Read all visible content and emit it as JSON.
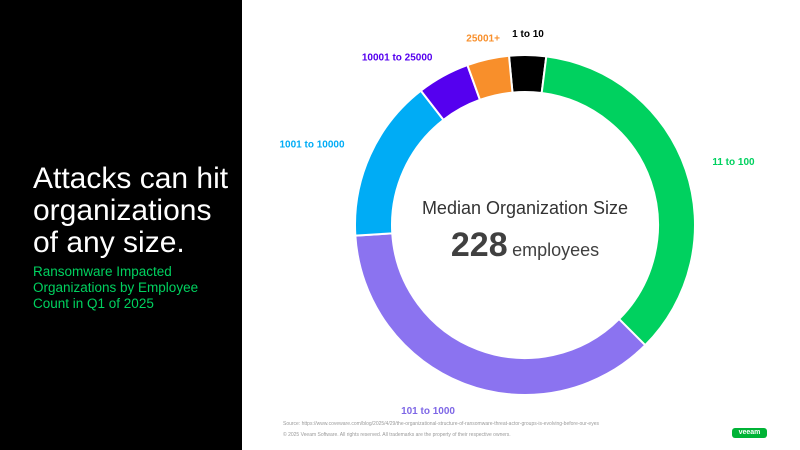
{
  "slide": {
    "headline": "Attacks can hit organizations of any size.",
    "subhead": "Ransomware Impacted Organizations by Employee Count in Q1 of 2025",
    "center_title": "Median Organization Size",
    "center_value": "228",
    "center_unit": "employees",
    "source": "Source: https://www.coveware.com/blog/2025/4/29/the-organizational-structure-of-ransomware-threat-actor-groups-is-evolving-before-our-eyes",
    "copyright": "© 2025 Veeam Software. All rights reserved. All trademarks are the property of their respective owners.",
    "logo_text": "veeam",
    "colors": {
      "left_panel": "#000000",
      "accent": "#00d15f"
    }
  },
  "chart_data": {
    "type": "pie",
    "title": "",
    "categories": [
      "1 to 10",
      "11 to 100",
      "101 to 1000",
      "1001 to 10000",
      "10001 to 25000",
      "25001+"
    ],
    "values": [
      3.5,
      35.5,
      36.5,
      15.5,
      5,
      4
    ],
    "colors": [
      "#000000",
      "#00d15f",
      "#8b73f0",
      "#00acf5",
      "#5500ef",
      "#f88f2b"
    ],
    "label_colors": [
      "#000000",
      "#00d15f",
      "#7e67e6",
      "#00acf5",
      "#5500ef",
      "#f88f2b"
    ],
    "donut": true,
    "legend": "none"
  }
}
